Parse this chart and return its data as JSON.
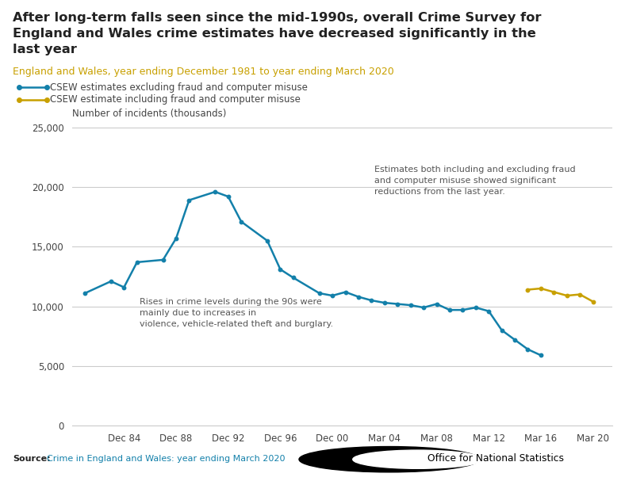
{
  "title_line1": "After long-term falls seen since the mid-1990s, overall Crime Survey for",
  "title_line2": "England and Wales crime estimates have decreased significantly in the",
  "title_line3": "last year",
  "subtitle": "England and Wales, year ending December 1981 to year ending March 2020",
  "ylabel": "Number of incidents (thousands)",
  "source_label": "Source:",
  "source_text": "Crime in England and Wales: year ending March 2020",
  "legend_line1": "CSEW estimates excluding fraud and computer misuse",
  "legend_line2": "CSEW estimate including fraud and computer misuse",
  "annotation1": "Rises in crime levels during the 90s were\nmainly due to increases in\nviolence, vehicle-related theft and burglary.",
  "annotation2": "Estimates both including and excluding fraud\nand computer misuse showed significant\nreductions from the last year.",
  "blue_color": "#1380aa",
  "gold_color": "#c8a000",
  "title_color": "#222222",
  "subtitle_color": "#c8a000",
  "source_bold_color": "#222222",
  "source_link_color": "#1380aa",
  "annotation_color": "#555555",
  "background_color": "#ffffff",
  "grid_color": "#cccccc",
  "blue_x": [
    1981,
    1983,
    1984,
    1985,
    1987,
    1988,
    1989,
    1991,
    1992,
    1993,
    1995,
    1996,
    1997,
    1999,
    2000,
    2001,
    2002,
    2003,
    2004,
    2005,
    2006,
    2007,
    2008,
    2009,
    2010,
    2011,
    2012,
    2013,
    2014,
    2015,
    2016
  ],
  "blue_y": [
    11100,
    12100,
    11600,
    13700,
    13900,
    15700,
    18900,
    19600,
    19200,
    17100,
    15500,
    13100,
    12400,
    11100,
    10900,
    11200,
    10800,
    10500,
    10300,
    10200,
    10100,
    9900,
    10200,
    9700,
    9700,
    9900,
    9600,
    8000,
    7200,
    6400,
    5900
  ],
  "gold_x": [
    2015,
    2016,
    2017,
    2018,
    2019,
    2020
  ],
  "gold_y": [
    11400,
    11500,
    11200,
    10900,
    11000,
    10400
  ],
  "xtick_years": [
    1984,
    1988,
    1992,
    1996,
    2000,
    2004,
    2008,
    2012,
    2016,
    2020
  ],
  "xtick_labels": [
    "Dec 84",
    "Dec 88",
    "Dec 92",
    "Dec 96",
    "Dec 00",
    "Mar 04",
    "Mar 08",
    "Mar 12",
    "Mar 16",
    "Mar 20"
  ],
  "xlim": [
    1980,
    2021.5
  ],
  "ylim": [
    0,
    26000
  ],
  "yticks": [
    0,
    5000,
    10000,
    15000,
    20000,
    25000
  ]
}
